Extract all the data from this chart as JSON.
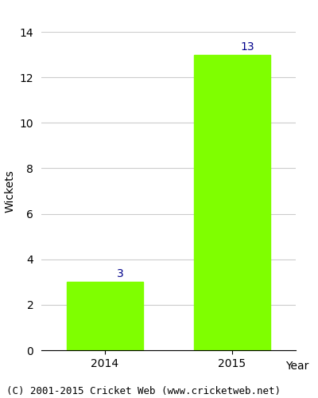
{
  "years": [
    "2014",
    "2015"
  ],
  "values": [
    3,
    13
  ],
  "bar_color": "#7fff00",
  "bar_edge_color": "#7fff00",
  "label_color": "#00008b",
  "ylabel": "Wickets",
  "xlabel": "Year",
  "ylim": [
    0,
    14
  ],
  "yticks": [
    0,
    2,
    4,
    6,
    8,
    10,
    12,
    14
  ],
  "grid_color": "#cccccc",
  "background_color": "#ffffff",
  "footer_text": "(C) 2001-2015 Cricket Web (www.cricketweb.net)",
  "footer_color": "#000000",
  "label_fontsize": 10,
  "axis_fontsize": 10,
  "footer_fontsize": 9,
  "bar_width": 0.6
}
